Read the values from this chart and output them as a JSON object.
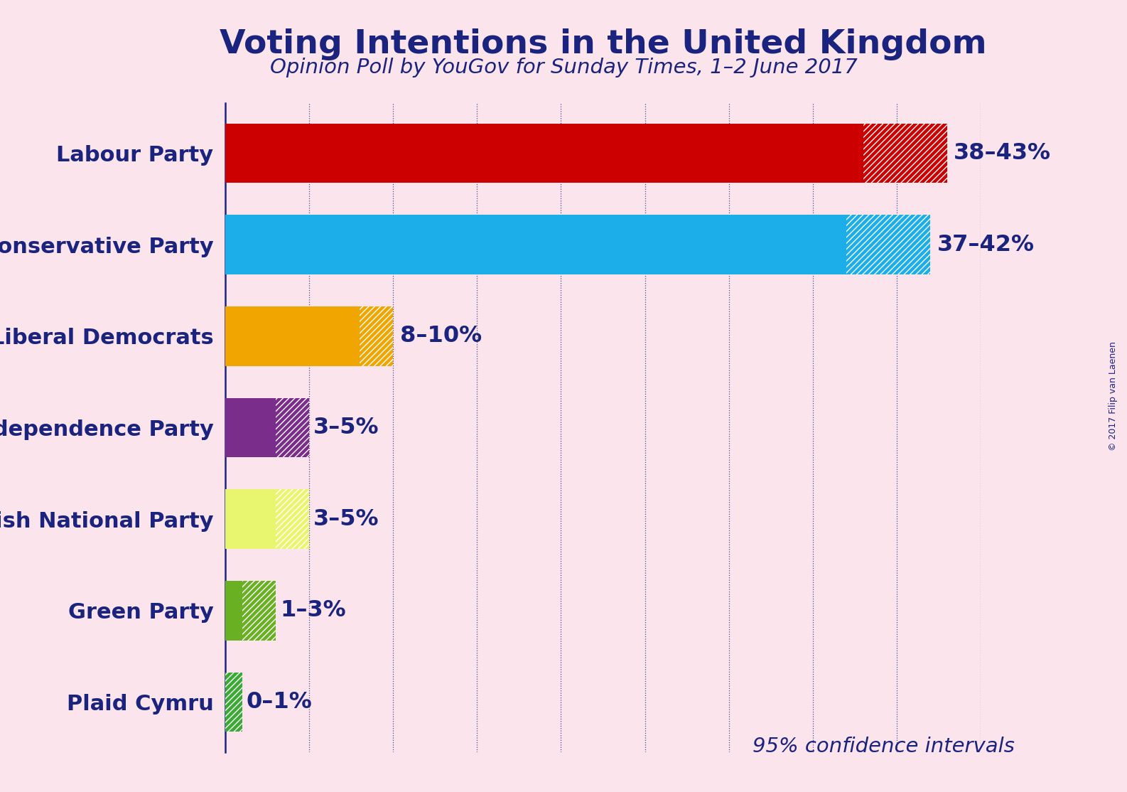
{
  "title": "Voting Intentions in the United Kingdom",
  "subtitle": "Opinion Poll by YouGov for Sunday Times, 1–2 June 2017",
  "copyright": "© 2017 Filip van Laenen",
  "confidence_label": "95% confidence intervals",
  "background_color": "#fce4ec",
  "title_color": "#1a237e",
  "subtitle_color": "#1a237e",
  "label_color": "#1a237e",
  "parties": [
    "Labour Party",
    "Conservative Party",
    "Liberal Democrats",
    "UK Independence Party",
    "Scottish National Party",
    "Green Party",
    "Plaid Cymru"
  ],
  "low_values": [
    38,
    37,
    8,
    3,
    3,
    1,
    0
  ],
  "high_values": [
    43,
    42,
    10,
    5,
    5,
    3,
    1
  ],
  "bar_colors": [
    "#cc0000",
    "#1baee8",
    "#f0a500",
    "#7b2d8b",
    "#e8f56e",
    "#6ab023",
    "#3aaa35"
  ],
  "labels": [
    "38–43%",
    "37–42%",
    "8–10%",
    "3–5%",
    "3–5%",
    "1–3%",
    "0–1%"
  ],
  "xlim": [
    0,
    45
  ],
  "grid_ticks": [
    5,
    10,
    15,
    20,
    25,
    30,
    35,
    40,
    45
  ]
}
